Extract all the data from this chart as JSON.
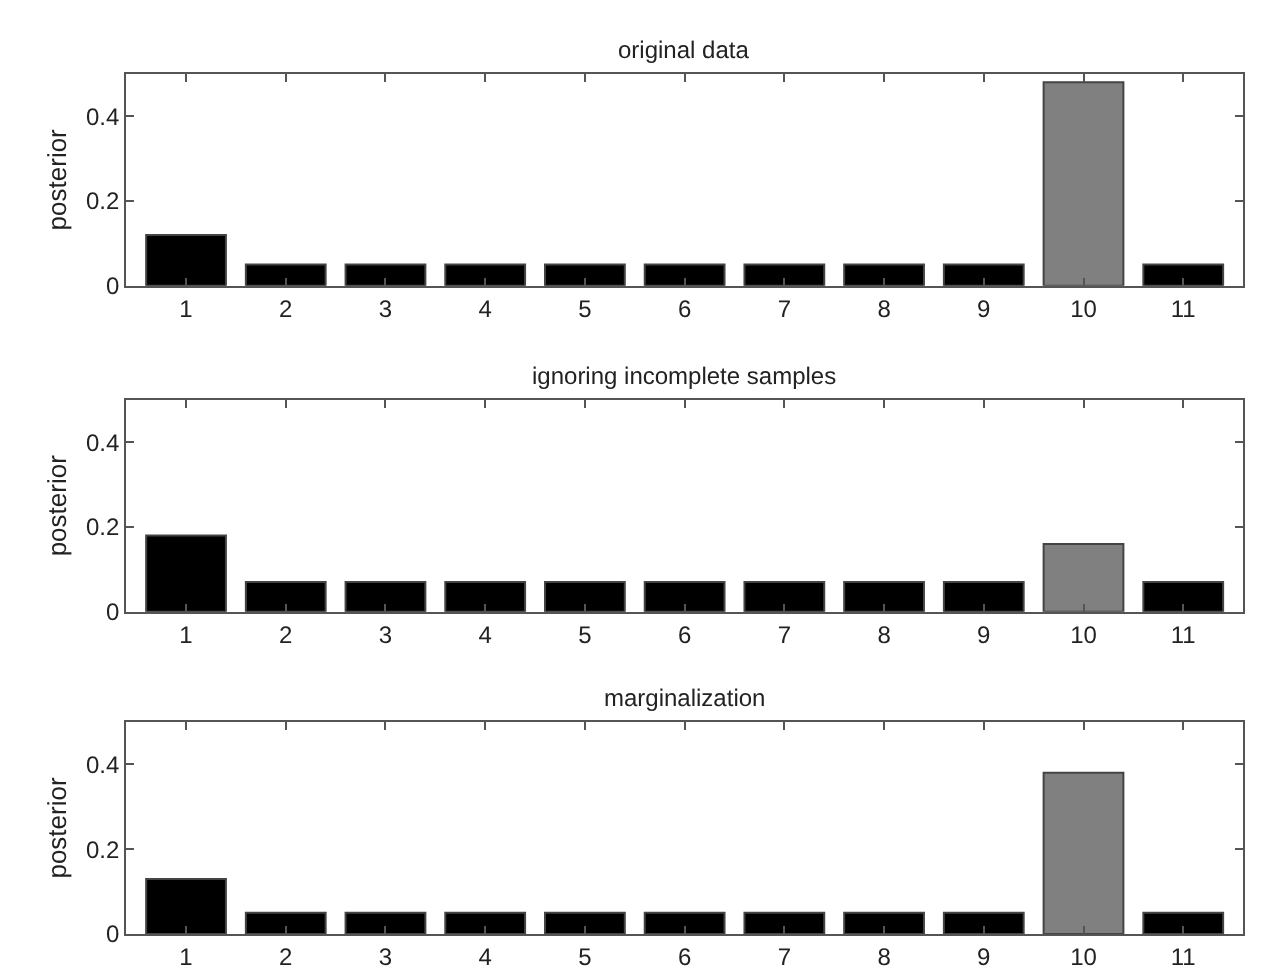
{
  "chart_data": [
    {
      "type": "bar",
      "title": "original data",
      "ylabel": "posterior",
      "categories": [
        "1",
        "2",
        "3",
        "4",
        "5",
        "6",
        "7",
        "8",
        "9",
        "10",
        "11"
      ],
      "values": [
        0.12,
        0.05,
        0.05,
        0.05,
        0.05,
        0.05,
        0.05,
        0.05,
        0.05,
        0.48,
        0.05
      ],
      "colors": [
        "#000000",
        "#000000",
        "#000000",
        "#000000",
        "#000000",
        "#000000",
        "#000000",
        "#000000",
        "#000000",
        "#808080",
        "#000000"
      ],
      "ylim": [
        0,
        0.5
      ],
      "yticks": [
        0,
        0.2,
        0.4
      ]
    },
    {
      "type": "bar",
      "title": "ignoring incomplete samples",
      "ylabel": "posterior",
      "categories": [
        "1",
        "2",
        "3",
        "4",
        "5",
        "6",
        "7",
        "8",
        "9",
        "10",
        "11"
      ],
      "values": [
        0.18,
        0.07,
        0.07,
        0.07,
        0.07,
        0.07,
        0.07,
        0.07,
        0.07,
        0.16,
        0.07
      ],
      "colors": [
        "#000000",
        "#000000",
        "#000000",
        "#000000",
        "#000000",
        "#000000",
        "#000000",
        "#000000",
        "#000000",
        "#808080",
        "#000000"
      ],
      "ylim": [
        0,
        0.5
      ],
      "yticks": [
        0,
        0.2,
        0.4
      ]
    },
    {
      "type": "bar",
      "title": "marginalization",
      "ylabel": "posterior",
      "categories": [
        "1",
        "2",
        "3",
        "4",
        "5",
        "6",
        "7",
        "8",
        "9",
        "10",
        "11"
      ],
      "values": [
        0.13,
        0.05,
        0.05,
        0.05,
        0.05,
        0.05,
        0.05,
        0.05,
        0.05,
        0.38,
        0.05
      ],
      "colors": [
        "#000000",
        "#000000",
        "#000000",
        "#000000",
        "#000000",
        "#000000",
        "#000000",
        "#000000",
        "#000000",
        "#808080",
        "#000000"
      ],
      "ylim": [
        0,
        0.5
      ],
      "yticks": [
        0,
        0.2,
        0.4
      ]
    }
  ]
}
